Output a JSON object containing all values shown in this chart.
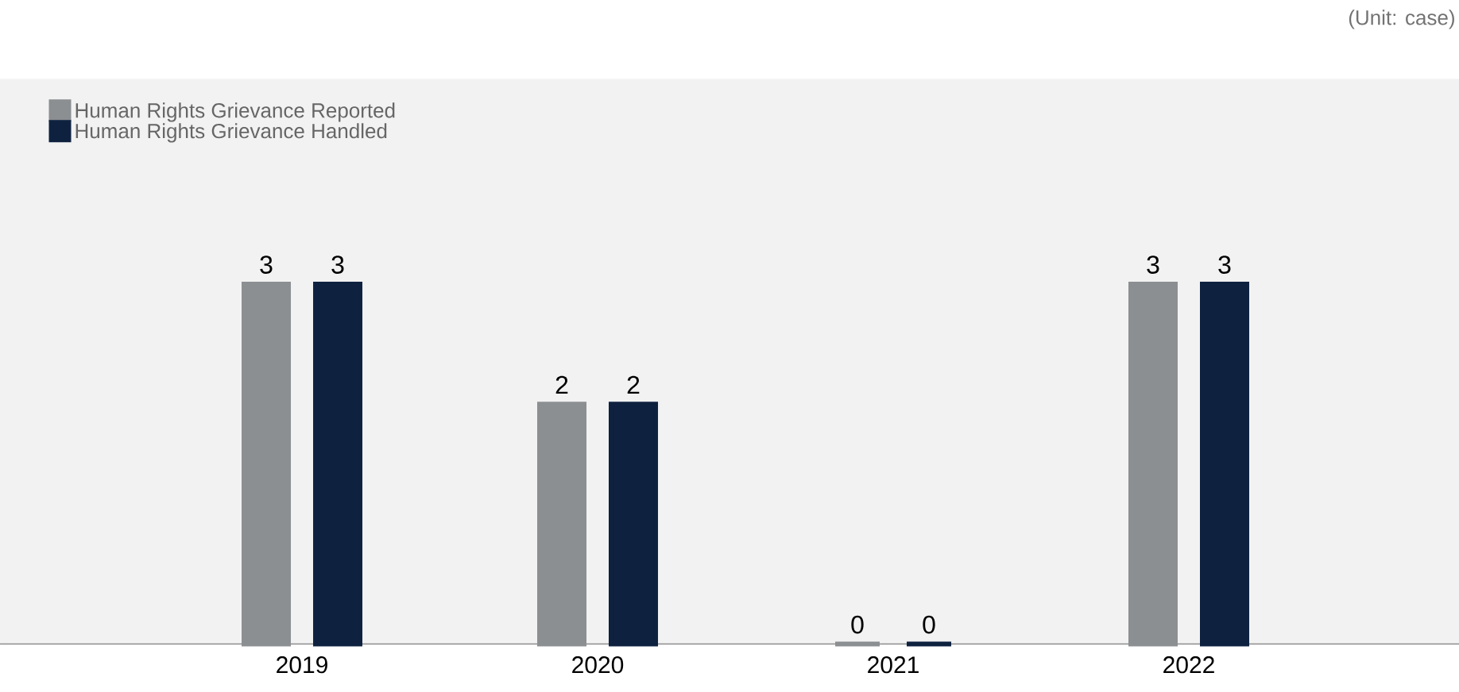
{
  "chart_data": {
    "type": "bar",
    "categories": [
      "2019",
      "2020",
      "2021",
      "2022"
    ],
    "series": [
      {
        "name": "Human Rights Grievance Reported",
        "color": "#8c8f92",
        "values": [
          3,
          2,
          0,
          3
        ],
        "value_labels": [
          "3",
          "2",
          "0",
          "3"
        ]
      },
      {
        "name": "Human Rights Grievance Handled",
        "color": "#0e2240",
        "values": [
          3,
          2,
          0,
          3
        ],
        "value_labels": [
          "3",
          "2",
          "0",
          "3"
        ]
      }
    ],
    "legend": "top left",
    "annotations": [
      "(Unit: case)"
    ]
  }
}
